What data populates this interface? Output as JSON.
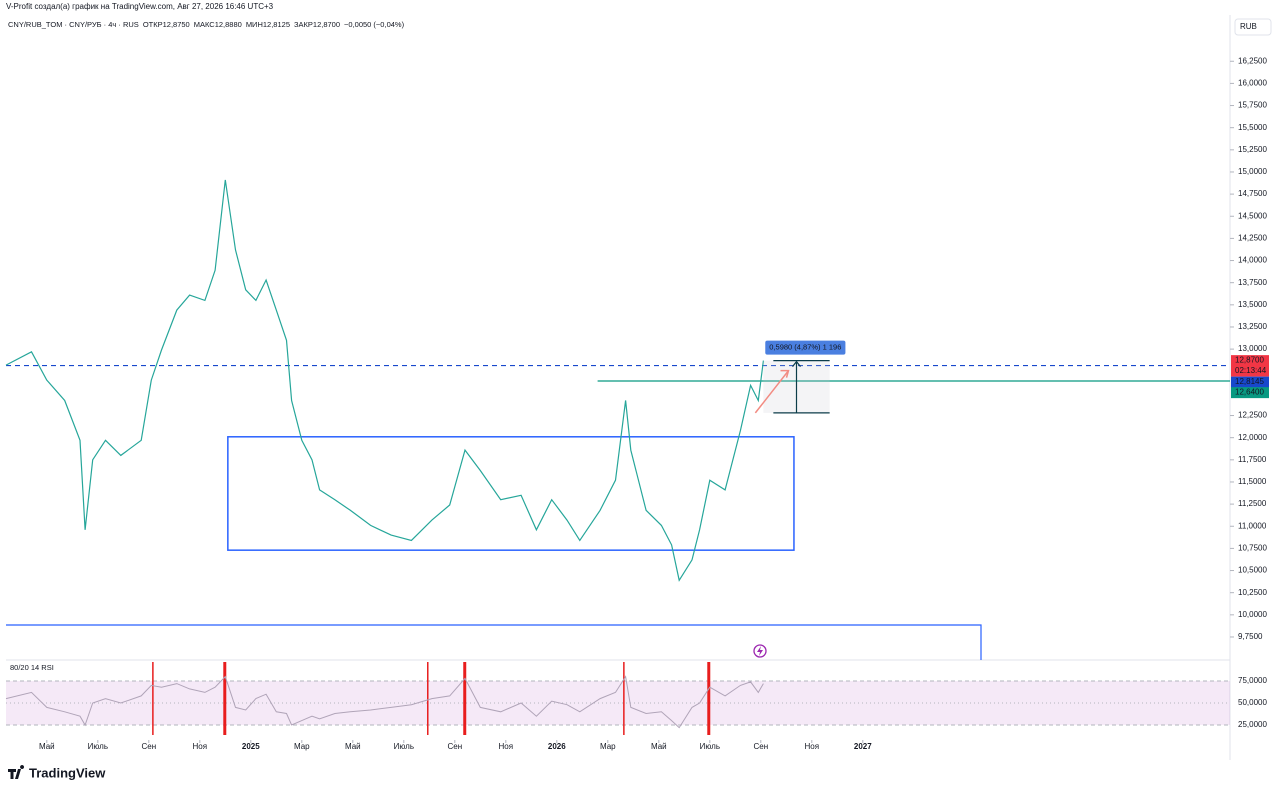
{
  "header": {
    "credit": "V-Profit создал(а) график на TradingView.com, Авг 27, 2026 16:46 UTC+3",
    "symbol": "CNY/RUB_TOM · CNY/РУБ · 4ч · RUS",
    "ohlc": [
      {
        "label": "ОТКР",
        "value": "12,8750"
      },
      {
        "label": "МАКС",
        "value": "12,8880"
      },
      {
        "label": "МИН",
        "value": "12,8125"
      },
      {
        "label": "ЗАКР",
        "value": "12,8700"
      }
    ],
    "change": "−0,0050 (−0,04%)"
  },
  "chart_data": {
    "type": "line",
    "color": "#26a69a",
    "currency": "RUB",
    "x": [
      2.4,
      3.4,
      4.0,
      4.7,
      5.3,
      5.5,
      5.8,
      6.3,
      6.9,
      7.7,
      8.1,
      8.5,
      9.1,
      9.6,
      10.2,
      10.6,
      11.0,
      11.4,
      11.8,
      12.2,
      12.6,
      13.0,
      13.4,
      13.6,
      14.0,
      14.4,
      14.7,
      15.3,
      15.9,
      16.7,
      17.5,
      18.3,
      19.1,
      19.8,
      20.4,
      21.0,
      21.8,
      22.6,
      23.2,
      23.8,
      24.4,
      24.9,
      25.7,
      26.3,
      26.7,
      26.9,
      27.5,
      28.1,
      28.5,
      28.8,
      29.3,
      29.6,
      30.0,
      30.6,
      31.2,
      31.6,
      31.9,
      32.1
    ],
    "values": [
      12.82,
      12.97,
      12.65,
      12.42,
      11.97,
      10.96,
      11.75,
      11.97,
      11.8,
      11.97,
      12.65,
      12.99,
      13.44,
      13.61,
      13.55,
      13.89,
      14.91,
      14.12,
      13.67,
      13.55,
      13.78,
      13.44,
      13.1,
      12.42,
      11.97,
      11.75,
      11.41,
      11.3,
      11.18,
      11.01,
      10.9,
      10.84,
      11.07,
      11.24,
      11.86,
      11.63,
      11.3,
      11.35,
      10.96,
      11.3,
      11.07,
      10.84,
      11.18,
      11.52,
      12.42,
      11.86,
      11.18,
      11.01,
      10.79,
      10.39,
      10.62,
      10.96,
      11.52,
      11.41,
      12.08,
      12.59,
      12.42,
      12.87
    ],
    "xlim": [
      2.4,
      50.4
    ],
    "xticks": [
      {
        "value": 4,
        "label": "Май"
      },
      {
        "value": 6,
        "label": "Июль"
      },
      {
        "value": 8,
        "label": "Сен"
      },
      {
        "value": 10,
        "label": "Ноя"
      },
      {
        "value": 12,
        "label": "2025"
      },
      {
        "value": 14,
        "label": "Мар"
      },
      {
        "value": 16,
        "label": "Май"
      },
      {
        "value": 18,
        "label": "Июль"
      },
      {
        "value": 20,
        "label": "Сен"
      },
      {
        "value": 22,
        "label": "Ноя"
      },
      {
        "value": 24,
        "label": "2026"
      },
      {
        "value": 26,
        "label": "Мар"
      },
      {
        "value": 28,
        "label": "Май"
      },
      {
        "value": 30,
        "label": "Июль"
      },
      {
        "value": 32,
        "label": "Сен"
      },
      {
        "value": 34,
        "label": "Ноя"
      },
      {
        "value": 36,
        "label": "2027"
      }
    ],
    "ylim": [
      9.49,
      16.49
    ],
    "yticks": [
      {
        "value": 16.25,
        "label": "16,2500"
      },
      {
        "value": 16,
        "label": "16,0000"
      },
      {
        "value": 15.75,
        "label": "15,7500"
      },
      {
        "value": 15.5,
        "label": "15,5000"
      },
      {
        "value": 15.25,
        "label": "15,2500"
      },
      {
        "value": 15,
        "label": "15,0000"
      },
      {
        "value": 14.75,
        "label": "14,7500"
      },
      {
        "value": 14.5,
        "label": "14,5000"
      },
      {
        "value": 14.25,
        "label": "14,2500"
      },
      {
        "value": 14,
        "label": "14,0000"
      },
      {
        "value": 13.75,
        "label": "13,7500"
      },
      {
        "value": 13.5,
        "label": "13,5000"
      },
      {
        "value": 13.25,
        "label": "13,2500"
      },
      {
        "value": 13,
        "label": "13,0000"
      },
      {
        "value": 12.25,
        "label": "12,2500"
      },
      {
        "value": 12,
        "label": "12,0000"
      },
      {
        "value": 11.75,
        "label": "11,7500"
      },
      {
        "value": 11.5,
        "label": "11,5000"
      },
      {
        "value": 11.25,
        "label": "11,2500"
      },
      {
        "value": 11,
        "label": "11,0000"
      },
      {
        "value": 10.75,
        "label": "10,7500"
      },
      {
        "value": 10.5,
        "label": "10,5000"
      },
      {
        "value": 10.25,
        "label": "10,2500"
      },
      {
        "value": 10,
        "label": "10,0000"
      },
      {
        "value": 9.75,
        "label": "9,7500"
      }
    ],
    "price_labels": [
      {
        "value": 12.87,
        "label": "12,8700",
        "color": "#f23645"
      },
      {
        "label": "02:13:44",
        "color": "#f23645"
      },
      {
        "value": 12.8145,
        "label": "12,8145",
        "color": "#1848cc",
        "line": "dashed"
      },
      {
        "value": 12.64,
        "label": "12,6400",
        "color": "#089981",
        "line": "solid",
        "from": 25.6
      }
    ],
    "box": {
      "x": [
        11.1,
        33.3
      ],
      "y": [
        10.73,
        12.01
      ],
      "color": "#2962ff"
    },
    "measure": {
      "label": "0,5980 (4,87%) 1 196",
      "x": [
        32.1,
        34.7
      ],
      "y": [
        12.28,
        12.87
      ]
    },
    "rsi": {
      "title": "80/20 14 RSI",
      "color": "#b0a4b8",
      "ylim": [
        13.6,
        96.6
      ],
      "yticks": [
        {
          "value": 75,
          "label": "75,0000"
        },
        {
          "value": 50,
          "label": "50,0000"
        },
        {
          "value": 25,
          "label": "25,0000"
        }
      ],
      "values": [
        55,
        62,
        45,
        40,
        35,
        25,
        50,
        55,
        50,
        58,
        70,
        68,
        72,
        66,
        62,
        68,
        80,
        45,
        42,
        55,
        60,
        40,
        38,
        25,
        30,
        35,
        32,
        38,
        40,
        42,
        45,
        48,
        55,
        58,
        78,
        45,
        40,
        50,
        35,
        52,
        48,
        40,
        55,
        62,
        80,
        45,
        38,
        40,
        30,
        22,
        45,
        50,
        68,
        58,
        70,
        74,
        62,
        72
      ],
      "signals": [
        8.16,
        10.98,
        18.94,
        20.39,
        26.63,
        29.96
      ]
    }
  },
  "footer": {
    "brand": "TradingView"
  }
}
